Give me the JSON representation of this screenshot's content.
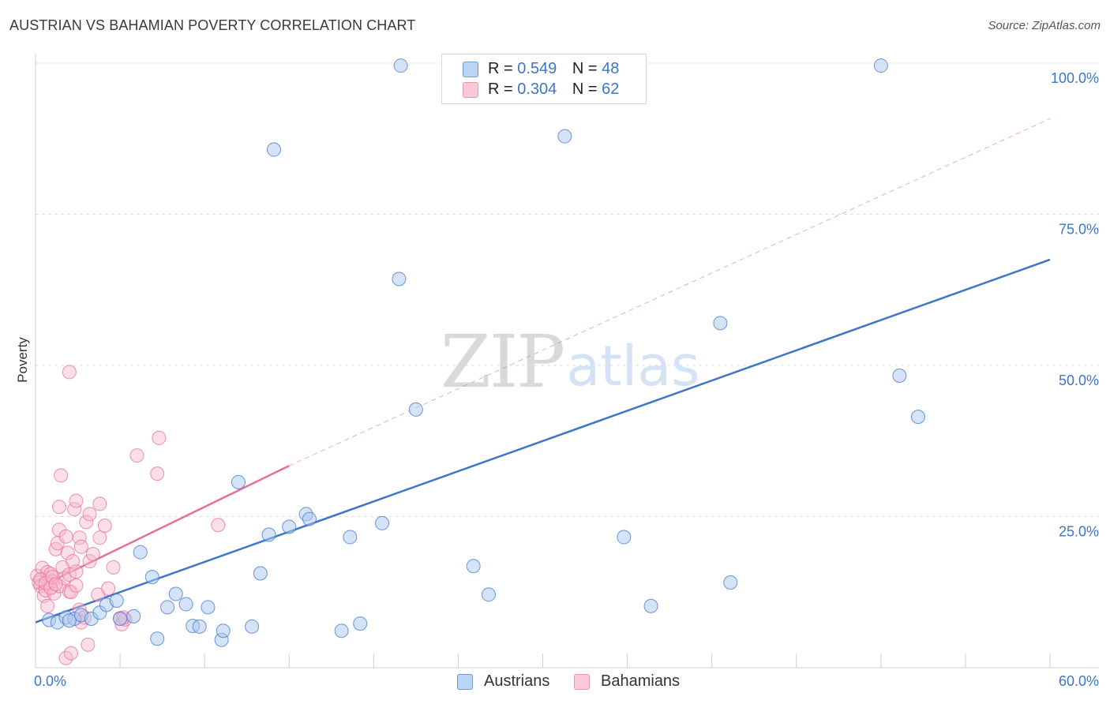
{
  "header": {
    "title": "AUSTRIAN VS BAHAMIAN POVERTY CORRELATION CHART",
    "source": "Source: ZipAtlas.com"
  },
  "watermark": {
    "zip": "ZIP",
    "atlas": "atlas"
  },
  "legend": {
    "rows": [
      {
        "r_label": "R =",
        "r_value": "0.549",
        "n_label": "N =",
        "n_value": "48",
        "color": "#a9c7ef"
      },
      {
        "r_label": "R =",
        "r_value": "0.304",
        "n_label": "N =",
        "n_value": "62",
        "color": "#f7b8cc"
      }
    ]
  },
  "bottom_legend": {
    "austrians": "Austrians",
    "bahamians": "Bahamians"
  },
  "chart_data": {
    "type": "scatter",
    "title": "AUSTRIAN VS BAHAMIAN POVERTY CORRELATION CHART",
    "xlabel": "",
    "ylabel": "Poverty",
    "xlim": [
      0,
      60
    ],
    "ylim": [
      0,
      100
    ],
    "x_tick_labels": [
      "0.0%",
      "60.0%"
    ],
    "y_tick_labels": [
      "25.0%",
      "50.0%",
      "75.0%",
      "100.0%"
    ],
    "y_ticks": [
      25,
      50,
      75,
      100
    ],
    "grid": true,
    "legend_position": "top-center",
    "colors": {
      "austrians": "#3d76c8",
      "austrians_fill": "#a9c7ef",
      "bahamians": "#e76e96",
      "bahamians_fill": "#f7b8cc"
    },
    "series": [
      {
        "name": "Austrians",
        "trend": {
          "x": [
            0,
            60
          ],
          "y": [
            7.5,
            67.5
          ]
        },
        "points": [
          [
            0.8,
            7.9
          ],
          [
            1.3,
            7.5
          ],
          [
            1.8,
            8.3
          ],
          [
            2.3,
            8.1
          ],
          [
            2.7,
            8.7
          ],
          [
            3.3,
            8.1
          ],
          [
            3.8,
            9.1
          ],
          [
            4.2,
            10.4
          ],
          [
            4.8,
            11.1
          ],
          [
            5.0,
            8.1
          ],
          [
            5.8,
            8.5
          ],
          [
            6.2,
            19.1
          ],
          [
            6.9,
            15.0
          ],
          [
            7.2,
            4.8
          ],
          [
            7.8,
            10.0
          ],
          [
            8.3,
            12.2
          ],
          [
            8.9,
            10.5
          ],
          [
            9.3,
            6.9
          ],
          [
            9.7,
            6.8
          ],
          [
            10.2,
            10.0
          ],
          [
            11.0,
            4.6
          ],
          [
            11.1,
            6.1
          ],
          [
            12.0,
            30.7
          ],
          [
            12.8,
            6.8
          ],
          [
            13.3,
            15.6
          ],
          [
            13.8,
            22.0
          ],
          [
            14.1,
            85.7
          ],
          [
            15.0,
            23.3
          ],
          [
            16.0,
            25.4
          ],
          [
            16.2,
            24.6
          ],
          [
            18.1,
            6.1
          ],
          [
            18.6,
            21.6
          ],
          [
            19.2,
            7.3
          ],
          [
            20.5,
            23.9
          ],
          [
            21.5,
            64.3
          ],
          [
            21.6,
            99.6
          ],
          [
            22.5,
            42.7
          ],
          [
            25.9,
            16.8
          ],
          [
            26.8,
            12.1
          ],
          [
            31.3,
            87.9
          ],
          [
            34.8,
            21.6
          ],
          [
            36.4,
            10.2
          ],
          [
            40.5,
            57.0
          ],
          [
            41.1,
            14.1
          ],
          [
            50.0,
            99.6
          ],
          [
            51.1,
            48.3
          ],
          [
            52.2,
            41.5
          ],
          [
            2.0,
            7.8
          ]
        ]
      },
      {
        "name": "Bahamians",
        "trend": {
          "x": [
            0,
            15
          ],
          "y": [
            13.0,
            33.4
          ]
        },
        "trend_extended": {
          "x": [
            15,
            60
          ],
          "y": [
            33.4,
            90.8
          ]
        },
        "points": [
          [
            0.1,
            15.2
          ],
          [
            0.2,
            14.1
          ],
          [
            0.3,
            13.5
          ],
          [
            0.4,
            16.5
          ],
          [
            0.5,
            11.9
          ],
          [
            0.6,
            12.8
          ],
          [
            0.7,
            15.8
          ],
          [
            0.7,
            10.2
          ],
          [
            0.8,
            13.9
          ],
          [
            0.9,
            15.5
          ],
          [
            1.0,
            14.3
          ],
          [
            1.1,
            12.3
          ],
          [
            1.2,
            19.6
          ],
          [
            1.3,
            20.6
          ],
          [
            1.4,
            13.5
          ],
          [
            1.4,
            22.8
          ],
          [
            1.4,
            26.6
          ],
          [
            1.5,
            31.8
          ],
          [
            1.6,
            16.6
          ],
          [
            1.7,
            14.8
          ],
          [
            1.8,
            21.7
          ],
          [
            1.8,
            1.6
          ],
          [
            1.9,
            19.0
          ],
          [
            2.0,
            15.4
          ],
          [
            2.0,
            12.6
          ],
          [
            2.0,
            48.9
          ],
          [
            2.1,
            12.5
          ],
          [
            2.1,
            2.4
          ],
          [
            2.2,
            17.6
          ],
          [
            2.3,
            26.2
          ],
          [
            2.4,
            15.9
          ],
          [
            2.4,
            13.6
          ],
          [
            2.4,
            27.6
          ],
          [
            2.6,
            9.6
          ],
          [
            2.6,
            21.5
          ],
          [
            2.7,
            20.0
          ],
          [
            2.7,
            7.5
          ],
          [
            2.9,
            8.3
          ],
          [
            3.0,
            24.1
          ],
          [
            3.1,
            3.8
          ],
          [
            3.2,
            25.4
          ],
          [
            3.2,
            17.6
          ],
          [
            3.4,
            18.8
          ],
          [
            3.7,
            12.1
          ],
          [
            3.8,
            21.5
          ],
          [
            3.8,
            27.1
          ],
          [
            4.1,
            23.5
          ],
          [
            4.3,
            13.1
          ],
          [
            4.6,
            16.6
          ],
          [
            5.0,
            8.2
          ],
          [
            5.1,
            7.2
          ],
          [
            5.3,
            8.0
          ],
          [
            5.2,
            8.3
          ],
          [
            6.0,
            35.1
          ],
          [
            7.2,
            32.1
          ],
          [
            7.3,
            38.0
          ],
          [
            10.8,
            23.6
          ],
          [
            0.3,
            14.6
          ],
          [
            0.6,
            14.0
          ],
          [
            0.9,
            13.2
          ],
          [
            1.0,
            15.0
          ],
          [
            1.2,
            13.8
          ]
        ]
      }
    ]
  }
}
